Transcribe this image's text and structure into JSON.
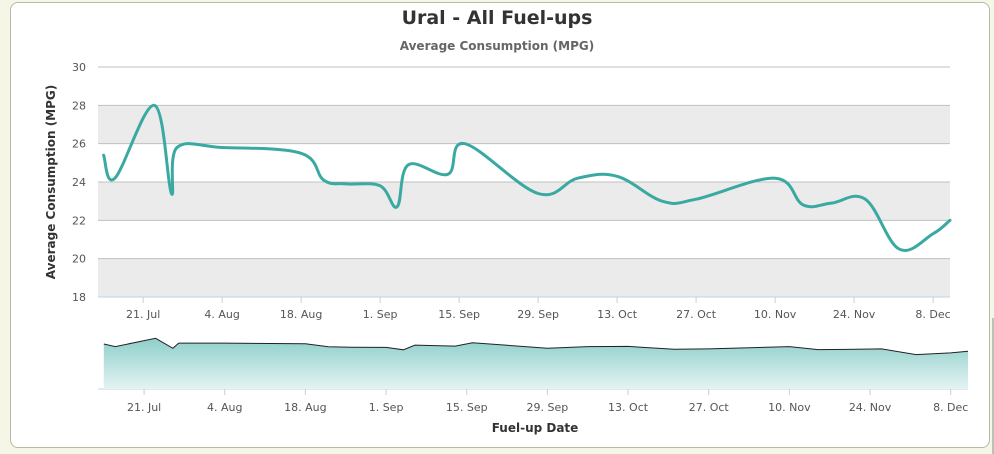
{
  "chart_data": {
    "type": "line",
    "title": "Ural - All Fuel-ups",
    "subtitle": "Average Consumption (MPG)",
    "ylabel": "Average Consumption (MPG)",
    "xlabel": "Fuel-up Date",
    "ylim": [
      18,
      30
    ],
    "y_ticks": [
      18,
      20,
      22,
      24,
      26,
      28,
      30
    ],
    "x_range": [
      "2012-07-13",
      "2012-12-11"
    ],
    "x_ticks": [
      {
        "date": "2012-07-21",
        "label": "21. Jul"
      },
      {
        "date": "2012-08-04",
        "label": "4. Aug"
      },
      {
        "date": "2012-08-18",
        "label": "18. Aug"
      },
      {
        "date": "2012-09-01",
        "label": "1. Sep"
      },
      {
        "date": "2012-09-15",
        "label": "15. Sep"
      },
      {
        "date": "2012-09-29",
        "label": "29. Sep"
      },
      {
        "date": "2012-10-13",
        "label": "13. Oct"
      },
      {
        "date": "2012-10-27",
        "label": "27. Oct"
      },
      {
        "date": "2012-11-10",
        "label": "10. Nov"
      },
      {
        "date": "2012-11-24",
        "label": "24. Nov"
      },
      {
        "date": "2012-12-08",
        "label": "8. Dec"
      }
    ],
    "grid": true,
    "banded_plot_area": true,
    "navigator": true,
    "line_color": "#3aa9a2",
    "series": [
      {
        "points": [
          [
            "2012-07-14",
            25.4
          ],
          [
            "2012-07-16",
            24.2
          ],
          [
            "2012-07-23",
            28.0
          ],
          [
            "2012-07-26",
            23.4
          ],
          [
            "2012-07-27",
            25.8
          ],
          [
            "2012-08-04",
            25.8
          ],
          [
            "2012-08-18",
            25.5
          ],
          [
            "2012-08-22",
            24.1
          ],
          [
            "2012-08-26",
            23.9
          ],
          [
            "2012-09-01",
            23.8
          ],
          [
            "2012-09-04",
            22.7
          ],
          [
            "2012-09-06",
            24.9
          ],
          [
            "2012-09-13",
            24.4
          ],
          [
            "2012-09-16",
            26.0
          ],
          [
            "2012-09-29",
            23.4
          ],
          [
            "2012-10-06",
            24.2
          ],
          [
            "2012-10-13",
            24.3
          ],
          [
            "2012-10-21",
            23.0
          ],
          [
            "2012-10-27",
            23.1
          ],
          [
            "2012-11-10",
            24.2
          ],
          [
            "2012-11-15",
            22.8
          ],
          [
            "2012-11-20",
            22.9
          ],
          [
            "2012-11-26",
            23.1
          ],
          [
            "2012-12-02",
            20.5
          ],
          [
            "2012-12-08",
            21.3
          ],
          [
            "2012-12-11",
            22.0
          ]
        ]
      }
    ]
  }
}
